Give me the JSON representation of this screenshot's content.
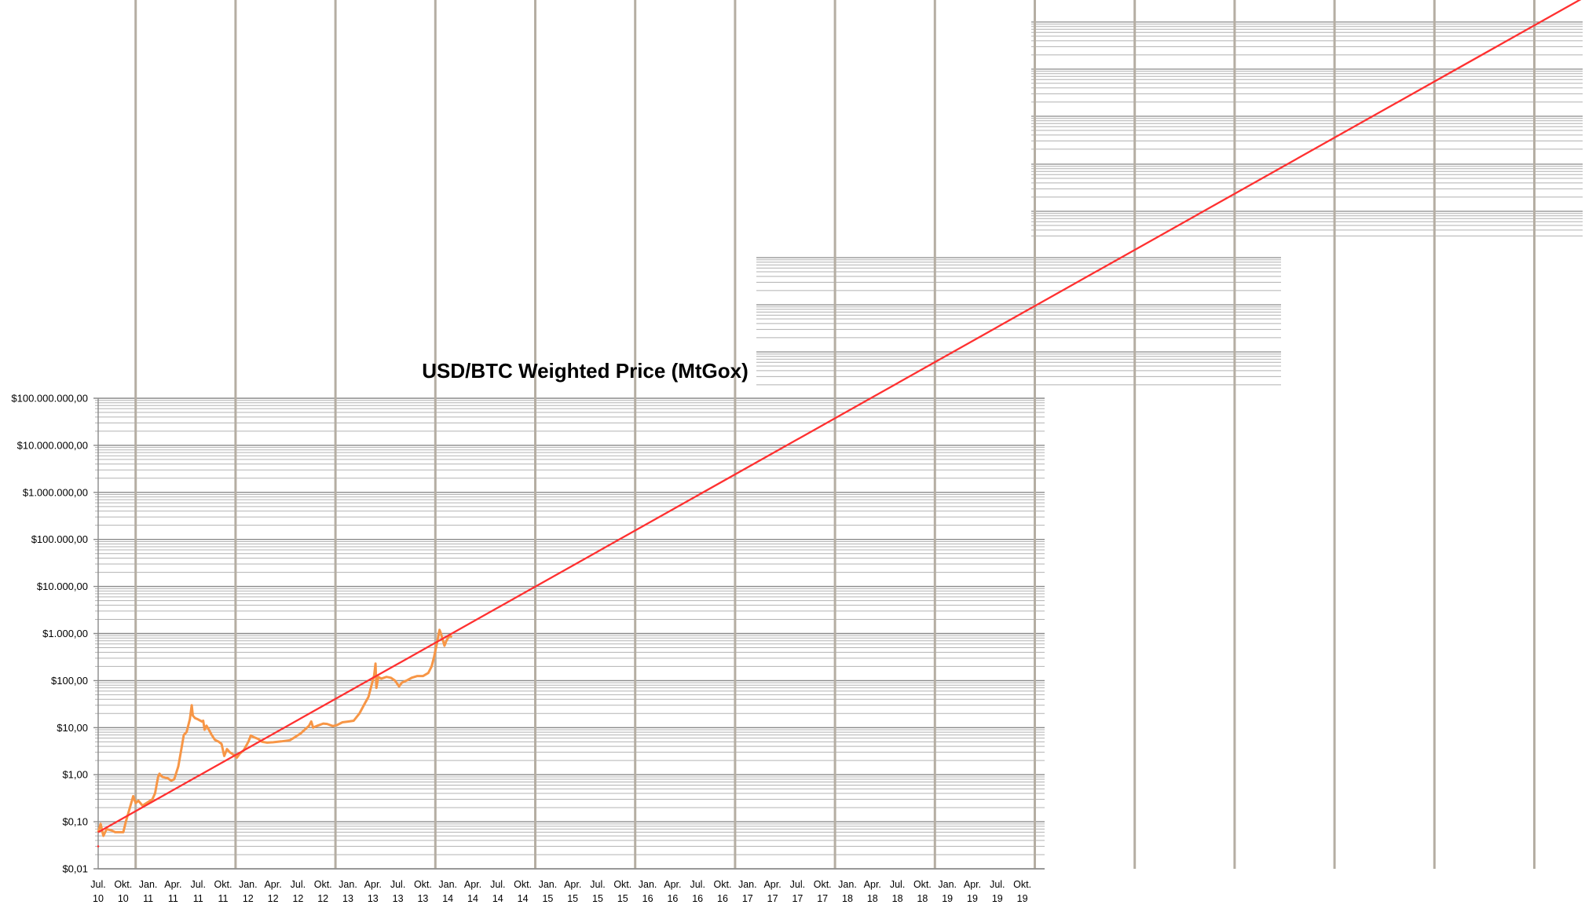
{
  "chart_data": {
    "type": "line",
    "title": "USD/BTC Weighted Price (MtGox)",
    "y_scale": "log",
    "ylim": [
      0.01,
      100000000
    ],
    "y_tick_labels": [
      "$0,01",
      "$0,10",
      "$1,00",
      "$10,00",
      "$100,00",
      "$1.000,00",
      "$10.000,00",
      "$100.000,00",
      "$1.000.000,00",
      "$10.000.000,00",
      "$100.000.000,00"
    ],
    "y_tick_values": [
      0.01,
      0.1,
      1,
      10,
      100,
      1000,
      10000,
      100000,
      1000000,
      10000000,
      100000000
    ],
    "x_tick_labels": [
      [
        "Jul.",
        "10"
      ],
      [
        "Okt.",
        "10"
      ],
      [
        "Jan.",
        "11"
      ],
      [
        "Apr.",
        "11"
      ],
      [
        "Jul.",
        "11"
      ],
      [
        "Okt.",
        "11"
      ],
      [
        "Jan.",
        "12"
      ],
      [
        "Apr.",
        "12"
      ],
      [
        "Jul.",
        "12"
      ],
      [
        "Okt.",
        "12"
      ],
      [
        "Jan.",
        "13"
      ],
      [
        "Apr.",
        "13"
      ],
      [
        "Jul.",
        "13"
      ],
      [
        "Okt.",
        "13"
      ],
      [
        "Jan.",
        "14"
      ],
      [
        "Apr.",
        "14"
      ],
      [
        "Jul.",
        "14"
      ],
      [
        "Okt.",
        "14"
      ],
      [
        "Jan.",
        "15"
      ],
      [
        "Apr.",
        "15"
      ],
      [
        "Jul.",
        "15"
      ],
      [
        "Okt.",
        "15"
      ],
      [
        "Jan.",
        "16"
      ],
      [
        "Apr.",
        "16"
      ],
      [
        "Jul.",
        "16"
      ],
      [
        "Okt.",
        "16"
      ],
      [
        "Jan.",
        "17"
      ],
      [
        "Apr.",
        "17"
      ],
      [
        "Jul.",
        "17"
      ],
      [
        "Okt.",
        "17"
      ],
      [
        "Jan.",
        "18"
      ],
      [
        "Apr.",
        "18"
      ],
      [
        "Jul.",
        "18"
      ],
      [
        "Okt.",
        "18"
      ],
      [
        "Jan.",
        "19"
      ],
      [
        "Apr.",
        "19"
      ],
      [
        "Jul.",
        "19"
      ],
      [
        "Okt.",
        "19"
      ]
    ],
    "xlim": [
      "2010-07-01",
      "2019-10-01"
    ],
    "grid": true,
    "legend": "none",
    "series": [
      {
        "color": "#f79646",
        "points": [
          [
            "2010-07-01",
            0.06
          ],
          [
            "2010-07-10",
            0.09
          ],
          [
            "2010-07-20",
            0.05
          ],
          [
            "2010-08-01",
            0.07
          ],
          [
            "2010-08-20",
            0.065
          ],
          [
            "2010-09-01",
            0.06
          ],
          [
            "2010-10-01",
            0.06
          ],
          [
            "2010-10-10",
            0.1
          ],
          [
            "2010-10-25",
            0.2
          ],
          [
            "2010-11-06",
            0.35
          ],
          [
            "2010-11-15",
            0.25
          ],
          [
            "2010-11-25",
            0.28
          ],
          [
            "2010-12-10",
            0.22
          ],
          [
            "2010-12-25",
            0.25
          ],
          [
            "2011-01-15",
            0.3
          ],
          [
            "2011-01-25",
            0.4
          ],
          [
            "2011-02-05",
            0.9
          ],
          [
            "2011-02-10",
            1.05
          ],
          [
            "2011-02-20",
            0.9
          ],
          [
            "2011-03-10",
            0.85
          ],
          [
            "2011-03-25",
            0.75
          ],
          [
            "2011-04-05",
            0.8
          ],
          [
            "2011-04-20",
            1.5
          ],
          [
            "2011-05-01",
            3.5
          ],
          [
            "2011-05-10",
            7
          ],
          [
            "2011-05-20",
            8
          ],
          [
            "2011-06-01",
            15
          ],
          [
            "2011-06-08",
            30
          ],
          [
            "2011-06-12",
            18
          ],
          [
            "2011-06-20",
            16
          ],
          [
            "2011-07-01",
            15
          ],
          [
            "2011-07-15",
            13.5
          ],
          [
            "2011-07-20",
            14
          ],
          [
            "2011-07-25",
            9
          ],
          [
            "2011-08-01",
            11
          ],
          [
            "2011-08-10",
            9
          ],
          [
            "2011-08-20",
            7
          ],
          [
            "2011-09-01",
            5.5
          ],
          [
            "2011-09-15",
            5
          ],
          [
            "2011-09-25",
            4.5
          ],
          [
            "2011-10-05",
            2.5
          ],
          [
            "2011-10-15",
            3.5
          ],
          [
            "2011-10-25",
            3
          ],
          [
            "2011-11-10",
            2.6
          ],
          [
            "2011-11-20",
            2.3
          ],
          [
            "2011-12-01",
            2.8
          ],
          [
            "2011-12-15",
            3.3
          ],
          [
            "2012-01-01",
            5
          ],
          [
            "2012-01-10",
            6.8
          ],
          [
            "2012-01-20",
            6.3
          ],
          [
            "2012-02-05",
            5.8
          ],
          [
            "2012-02-20",
            5
          ],
          [
            "2012-03-10",
            4.8
          ],
          [
            "2012-04-01",
            4.9
          ],
          [
            "2012-05-01",
            5.1
          ],
          [
            "2012-06-01",
            5.4
          ],
          [
            "2012-06-20",
            6.3
          ],
          [
            "2012-07-10",
            7.5
          ],
          [
            "2012-07-25",
            9
          ],
          [
            "2012-08-10",
            11
          ],
          [
            "2012-08-18",
            13.5
          ],
          [
            "2012-08-25",
            10
          ],
          [
            "2012-09-10",
            11
          ],
          [
            "2012-10-01",
            12.2
          ],
          [
            "2012-10-15",
            12
          ],
          [
            "2012-11-05",
            10.8
          ],
          [
            "2012-11-20",
            11.3
          ],
          [
            "2012-12-10",
            13
          ],
          [
            "2013-01-01",
            13.5
          ],
          [
            "2013-01-20",
            14
          ],
          [
            "2013-02-10",
            20
          ],
          [
            "2013-03-01",
            32
          ],
          [
            "2013-03-15",
            45
          ],
          [
            "2013-03-25",
            75
          ],
          [
            "2013-04-05",
            130
          ],
          [
            "2013-04-10",
            230
          ],
          [
            "2013-04-13",
            70
          ],
          [
            "2013-04-20",
            120
          ],
          [
            "2013-05-01",
            110
          ],
          [
            "2013-05-20",
            120
          ],
          [
            "2013-06-05",
            115
          ],
          [
            "2013-06-20",
            100
          ],
          [
            "2013-07-05",
            75
          ],
          [
            "2013-07-15",
            90
          ],
          [
            "2013-08-01",
            100
          ],
          [
            "2013-08-20",
            115
          ],
          [
            "2013-09-10",
            125
          ],
          [
            "2013-10-01",
            125
          ],
          [
            "2013-10-20",
            145
          ],
          [
            "2013-11-01",
            200
          ],
          [
            "2013-11-10",
            320
          ],
          [
            "2013-11-20",
            600
          ],
          [
            "2013-11-30",
            1200
          ],
          [
            "2013-12-05",
            1000
          ],
          [
            "2013-12-18",
            550
          ],
          [
            "2013-12-25",
            700
          ],
          [
            "2014-01-05",
            900
          ],
          [
            "2014-01-15",
            850
          ]
        ]
      }
    ],
    "trendline": {
      "color": "#ff3030",
      "points": [
        [
          "2010-07-01",
          0.06
        ],
        [
          "2019-10-01",
          6500000000
        ]
      ]
    }
  }
}
